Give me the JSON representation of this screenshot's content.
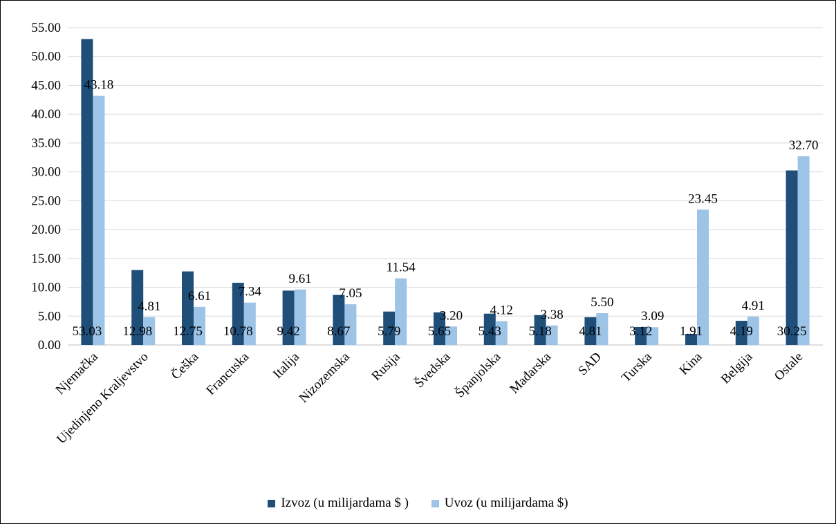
{
  "chart_data": {
    "type": "bar",
    "categories": [
      "Njemačka",
      "Ujedinjeno Kraljevstvo",
      "Češka",
      "Francuska",
      "Italija",
      "Nizozemska",
      "Rusija",
      "Švedska",
      "Španjolska",
      "Mađarska",
      "SAD",
      "Turska",
      "Kina",
      "Belgija",
      "Ostale"
    ],
    "series": [
      {
        "name": "Izvoz (u milijardama $ )",
        "color": "#1f4e79",
        "values": [
          53.03,
          12.98,
          12.75,
          10.78,
          9.42,
          8.67,
          5.79,
          5.65,
          5.43,
          5.18,
          4.81,
          3.12,
          1.91,
          4.19,
          30.25
        ]
      },
      {
        "name": "Uvoz (u milijardama $)",
        "color": "#9dc3e6",
        "values": [
          43.18,
          4.81,
          6.61,
          7.34,
          9.61,
          7.05,
          11.54,
          3.2,
          4.12,
          3.38,
          5.5,
          3.09,
          23.45,
          4.91,
          32.7
        ]
      }
    ],
    "value_labels": [
      [
        "53.03",
        "12.98",
        "12.75",
        "10.78",
        "9.42",
        "8.67",
        "5.79",
        "5.65",
        "5.43",
        "5.18",
        "4.81",
        "3.12",
        "1.91",
        "4.19",
        "30.25"
      ],
      [
        "43.18",
        "4.81",
        "6.61",
        "7.34",
        "9.61",
        "7.05",
        "11.54",
        "3.20",
        "4.12",
        "3.38",
        "5.50",
        "3.09",
        "23.45",
        "4.91",
        "32.70"
      ]
    ],
    "yticks": [
      "0.00",
      "5.00",
      "10.00",
      "15.00",
      "20.00",
      "25.00",
      "30.00",
      "35.00",
      "40.00",
      "45.00",
      "50.00",
      "55.00"
    ],
    "ylim": [
      0,
      55
    ],
    "grid": true,
    "legend_position": "bottom",
    "title": "",
    "xlabel": "",
    "ylabel": ""
  }
}
